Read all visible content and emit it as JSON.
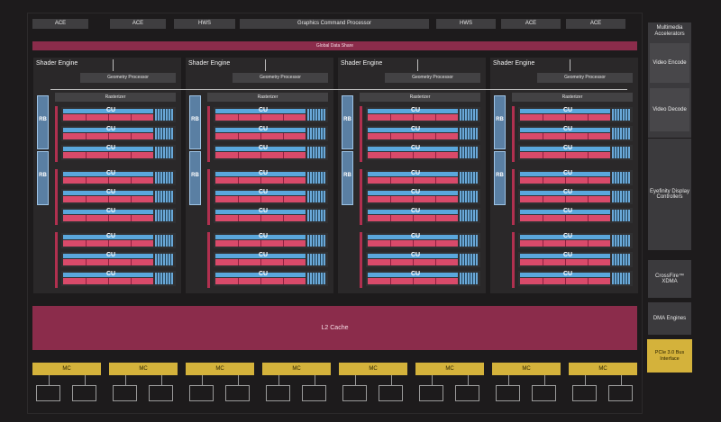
{
  "top_bar": {
    "blocks": [
      {
        "label": "ACE",
        "name": "ace-block-1"
      },
      {
        "label": "ACE",
        "name": "ace-block-2"
      },
      {
        "label": "HWS",
        "name": "hws-block-1"
      },
      {
        "label": "Graphics Command Processor",
        "name": "graphics-command-processor"
      },
      {
        "label": "HWS",
        "name": "hws-block-2"
      },
      {
        "label": "ACE",
        "name": "ace-block-3"
      },
      {
        "label": "ACE",
        "name": "ace-block-4"
      }
    ]
  },
  "global_data_share": {
    "label": "Global Data Share"
  },
  "shader_engines": [
    {
      "title": "Shader Engine",
      "geometry_processor": "Geometry Processor",
      "rasterizer": "Rasterizer",
      "rb_label": "RB",
      "cu_label": "CU"
    },
    {
      "title": "Shader Engine",
      "geometry_processor": "Geometry Processor",
      "rasterizer": "Rasterizer",
      "rb_label": "RB",
      "cu_label": "CU"
    },
    {
      "title": "Shader Engine",
      "geometry_processor": "Geometry Processor",
      "rasterizer": "Rasterizer",
      "rb_label": "RB",
      "cu_label": "CU"
    },
    {
      "title": "Shader Engine",
      "geometry_processor": "Geometry Processor",
      "rasterizer": "Rasterizer",
      "rb_label": "RB",
      "cu_label": "CU"
    }
  ],
  "side_panel": {
    "multimedia_title": "Multimedia Accelerators",
    "video_encode": "Video Encode",
    "video_decode": "Video Decode",
    "eyefinity": "Eyefinity Display Controllers",
    "crossfire": "CrossFire™ XDMA",
    "dma": "DMA Engines",
    "pcie": "PCIe 3.0 Bus Interface"
  },
  "l2_cache": {
    "label": "L2 Cache"
  },
  "memory_controllers": [
    "MC",
    "MC",
    "MC",
    "MC",
    "MC",
    "MC",
    "MC",
    "MC"
  ],
  "colors": {
    "background": "#1d1b1c",
    "cache_magenta": "#8b2c4b",
    "cu_blue": "#5aa7dc",
    "cu_red": "#d94a6a",
    "mc_gold": "#d4b23b"
  }
}
